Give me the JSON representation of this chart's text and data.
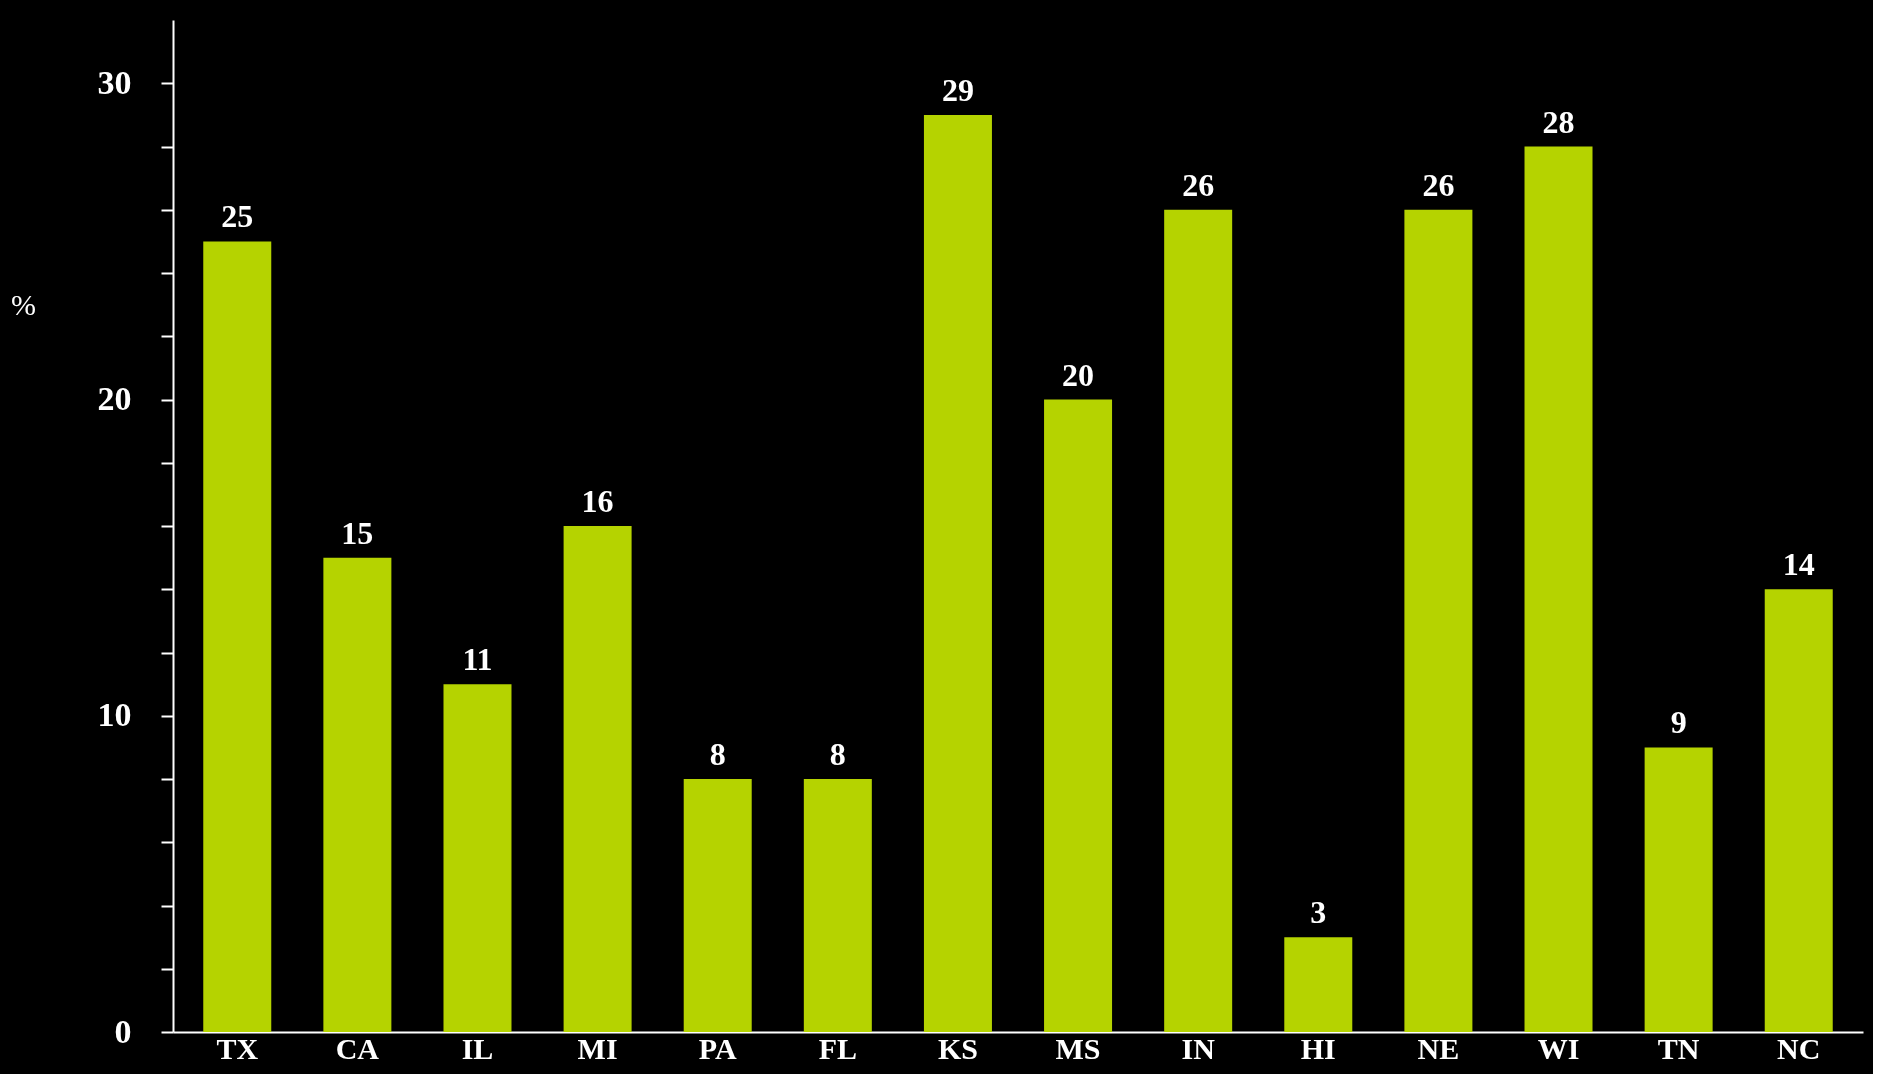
{
  "chart_data": {
    "type": "bar",
    "ylabel": "%",
    "categories": [
      "TX",
      "CA",
      "IL",
      "MI",
      "PA",
      "FL",
      "KS",
      "MS",
      "IN",
      "HI",
      "NE",
      "WI",
      "TN",
      "NC"
    ],
    "values": [
      25,
      15,
      11,
      16,
      8,
      8,
      29,
      20,
      26,
      3,
      26,
      28,
      9,
      14
    ],
    "color": "#b5d300",
    "ylim": [
      0,
      32
    ],
    "yticks": [
      0,
      {
        "value": 2,
        "label": null
      },
      {
        "value": 4,
        "label": null
      },
      {
        "value": 6,
        "label": null
      },
      {
        "value": 8,
        "label": null
      },
      10,
      {
        "value": 12,
        "label": null
      },
      {
        "value": 14,
        "label": null
      },
      {
        "value": 16,
        "label": null
      },
      {
        "value": 18,
        "label": null
      },
      20,
      {
        "value": 22,
        "label": null
      },
      {
        "value": 24,
        "label": null
      },
      {
        "value": 26,
        "label": null
      },
      {
        "value": 28,
        "label": null
      },
      30
    ],
    "data_labels": true,
    "grid": false
  }
}
